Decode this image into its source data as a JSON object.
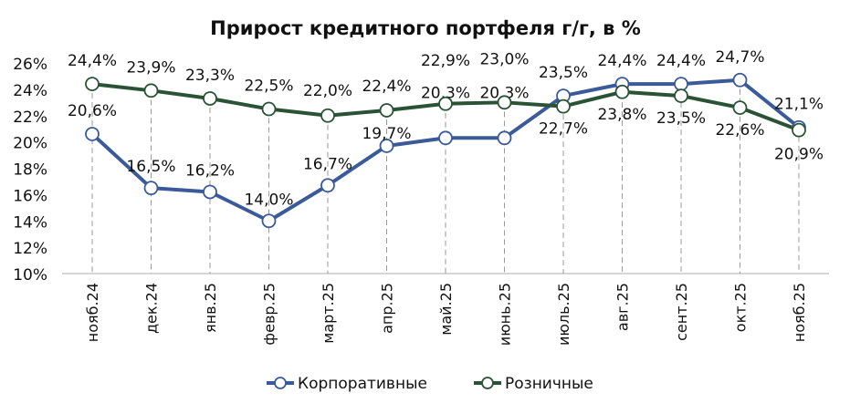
{
  "chart_data": {
    "type": "line",
    "title": "Прирост кредитного портфеля г/г, в %",
    "categories": [
      "нояб.24",
      "дек.24",
      "янв.25",
      "февр.25",
      "март.25",
      "апр.25",
      "май.25",
      "июнь.25",
      "июль.25",
      "авг.25",
      "сент.25",
      "окт.25",
      "нояб.25"
    ],
    "series": [
      {
        "name": "Корпоративные",
        "color": "#3a5a9a",
        "values": [
          20.6,
          16.5,
          16.2,
          14.0,
          16.7,
          19.7,
          20.3,
          20.3,
          23.5,
          24.4,
          24.4,
          24.7,
          21.1
        ],
        "labels": [
          "20,6%",
          "16,5%",
          "16,2%",
          "14,0%",
          "16,7%",
          "19,7%",
          "20,3%",
          "20,3%",
          "23,5%",
          "24,4%",
          "24,4%",
          "24,7%",
          "21,1%"
        ]
      },
      {
        "name": "Розничные",
        "color": "#2a5234",
        "values": [
          24.4,
          23.9,
          23.3,
          22.5,
          22.0,
          22.4,
          22.9,
          23.0,
          22.7,
          23.8,
          23.5,
          22.6,
          20.9
        ],
        "labels": [
          "24,4%",
          "23,9%",
          "23,3%",
          "22,5%",
          "22,0%",
          "22,4%",
          "22,9%",
          "23,0%",
          "22,7%",
          "23,8%",
          "23,5%",
          "22,6%",
          "20,9%"
        ]
      }
    ],
    "ylim": [
      10,
      26
    ],
    "yticks": [
      "10%",
      "12%",
      "14%",
      "16%",
      "18%",
      "20%",
      "22%",
      "24%",
      "26%"
    ],
    "grid": "vertical dashed drop lines",
    "legend": "bottom"
  }
}
